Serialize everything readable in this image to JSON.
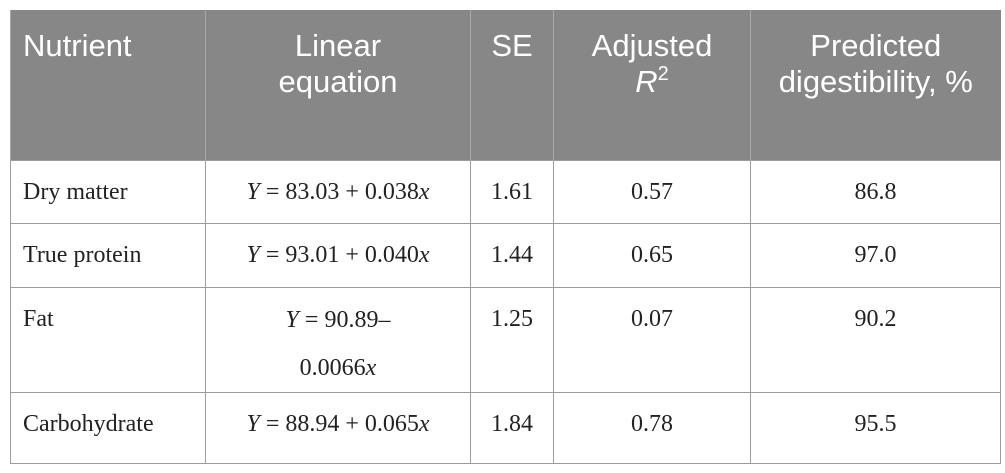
{
  "table": {
    "header": [
      "Nutrient",
      "Linear equation",
      "SE",
      {
        "text": "Adjusted",
        "variable": "R",
        "superscript": "2"
      },
      "Predicted digestibility, %"
    ],
    "rows": [
      {
        "nutrient": "Dry matter",
        "equation": {
          "lhs": "Y",
          "rhs": "= 83.03 + 0.038",
          "variable": "x"
        },
        "se": "1.61",
        "adj_r2": "0.57",
        "predicted": "86.8"
      },
      {
        "nutrient": "True protein",
        "equation": {
          "lhs": "Y",
          "rhs": "= 93.01 + 0.040",
          "variable": "x"
        },
        "se": "1.44",
        "adj_r2": "0.65",
        "predicted": "97.0"
      },
      {
        "nutrient": "Fat",
        "equation": {
          "lhs": "Y",
          "rhs": "= 90.89–",
          "rhs_continued": "0.0066",
          "variable": "x"
        },
        "se": "1.25",
        "adj_r2": "0.07",
        "predicted": "90.2"
      },
      {
        "nutrient": "Carbohydrate",
        "equation": {
          "lhs": "Y",
          "rhs": "= 88.94 + 0.065",
          "variable": "x"
        },
        "se": "1.84",
        "adj_r2": "0.78",
        "predicted": "95.5"
      }
    ]
  }
}
